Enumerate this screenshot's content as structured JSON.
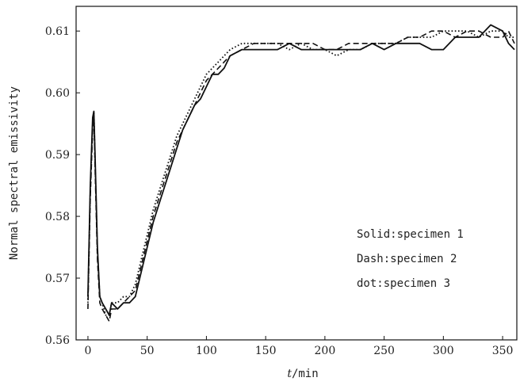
{
  "chart_data": {
    "type": "line",
    "title": "",
    "xlabel_italic": "t",
    "xlabel_rest": "/min",
    "ylabel": "Normal spectral emissivity",
    "xlim": [
      -10,
      362
    ],
    "ylim": [
      0.56,
      0.614
    ],
    "xticks": [
      0,
      50,
      100,
      150,
      200,
      250,
      300,
      350
    ],
    "yticks": [
      0.56,
      0.57,
      0.58,
      0.59,
      0.6,
      0.61
    ],
    "ytick_labels": [
      "0.56",
      "0.57",
      "0.58",
      "0.59",
      "0.60",
      "0.61"
    ],
    "grid": false,
    "legend_placement": "right",
    "legend": [
      {
        "label": "Solid:specimen 1",
        "style": "solid"
      },
      {
        "label": "Dash:specimen 2",
        "style": "dash"
      },
      {
        "label": "dot:specimen 3",
        "style": "dot"
      }
    ],
    "series": [
      {
        "style": "solid",
        "x": [
          0,
          2,
          4,
          5,
          6,
          8,
          10,
          12,
          15,
          18,
          20,
          25,
          30,
          35,
          40,
          45,
          50,
          55,
          60,
          65,
          70,
          75,
          80,
          85,
          90,
          95,
          100,
          105,
          110,
          115,
          120,
          130,
          140,
          150,
          160,
          170,
          180,
          190,
          200,
          210,
          220,
          230,
          240,
          250,
          260,
          270,
          280,
          290,
          300,
          310,
          320,
          330,
          340,
          350,
          355,
          360
        ],
        "y": [
          0.567,
          0.585,
          0.596,
          0.597,
          0.59,
          0.575,
          0.567,
          0.566,
          0.565,
          0.564,
          0.566,
          0.565,
          0.566,
          0.566,
          0.567,
          0.571,
          0.575,
          0.579,
          0.582,
          0.585,
          0.588,
          0.591,
          0.594,
          0.596,
          0.598,
          0.599,
          0.601,
          0.603,
          0.603,
          0.604,
          0.606,
          0.607,
          0.607,
          0.607,
          0.607,
          0.608,
          0.607,
          0.607,
          0.607,
          0.607,
          0.607,
          0.607,
          0.608,
          0.607,
          0.608,
          0.608,
          0.608,
          0.607,
          0.607,
          0.609,
          0.609,
          0.609,
          0.611,
          0.61,
          0.608,
          0.607
        ]
      },
      {
        "style": "dash",
        "x": [
          0,
          2,
          4,
          5,
          6,
          8,
          10,
          12,
          15,
          18,
          20,
          25,
          30,
          35,
          40,
          45,
          50,
          55,
          60,
          65,
          70,
          75,
          80,
          85,
          90,
          95,
          100,
          105,
          110,
          115,
          120,
          130,
          140,
          150,
          160,
          170,
          180,
          190,
          200,
          210,
          220,
          230,
          240,
          250,
          260,
          270,
          280,
          290,
          300,
          310,
          320,
          330,
          340,
          350,
          355,
          360
        ],
        "y": [
          0.565,
          0.583,
          0.594,
          0.596,
          0.588,
          0.573,
          0.566,
          0.565,
          0.564,
          0.563,
          0.565,
          0.565,
          0.566,
          0.567,
          0.568,
          0.572,
          0.576,
          0.58,
          0.583,
          0.586,
          0.589,
          0.592,
          0.594,
          0.596,
          0.598,
          0.6,
          0.602,
          0.603,
          0.604,
          0.605,
          0.606,
          0.607,
          0.608,
          0.608,
          0.608,
          0.608,
          0.608,
          0.608,
          0.607,
          0.607,
          0.608,
          0.608,
          0.608,
          0.608,
          0.608,
          0.609,
          0.609,
          0.61,
          0.61,
          0.609,
          0.61,
          0.61,
          0.609,
          0.609,
          0.61,
          0.608
        ]
      },
      {
        "style": "dot",
        "x": [
          0,
          2,
          4,
          5,
          6,
          8,
          10,
          12,
          15,
          18,
          20,
          25,
          30,
          35,
          40,
          45,
          50,
          55,
          60,
          65,
          70,
          75,
          80,
          85,
          90,
          95,
          100,
          105,
          110,
          115,
          120,
          130,
          140,
          150,
          160,
          170,
          180,
          190,
          200,
          210,
          220,
          230,
          240,
          250,
          260,
          270,
          280,
          290,
          300,
          310,
          320,
          330,
          340,
          350,
          355,
          360
        ],
        "y": [
          0.566,
          0.584,
          0.595,
          0.597,
          0.589,
          0.574,
          0.567,
          0.566,
          0.564,
          0.564,
          0.566,
          0.566,
          0.567,
          0.567,
          0.569,
          0.573,
          0.577,
          0.581,
          0.584,
          0.587,
          0.59,
          0.593,
          0.595,
          0.597,
          0.599,
          0.601,
          0.603,
          0.604,
          0.605,
          0.606,
          0.607,
          0.608,
          0.608,
          0.608,
          0.608,
          0.607,
          0.608,
          0.607,
          0.607,
          0.606,
          0.607,
          0.607,
          0.608,
          0.608,
          0.608,
          0.609,
          0.609,
          0.609,
          0.61,
          0.61,
          0.61,
          0.609,
          0.61,
          0.61,
          0.609,
          0.609
        ]
      }
    ]
  }
}
